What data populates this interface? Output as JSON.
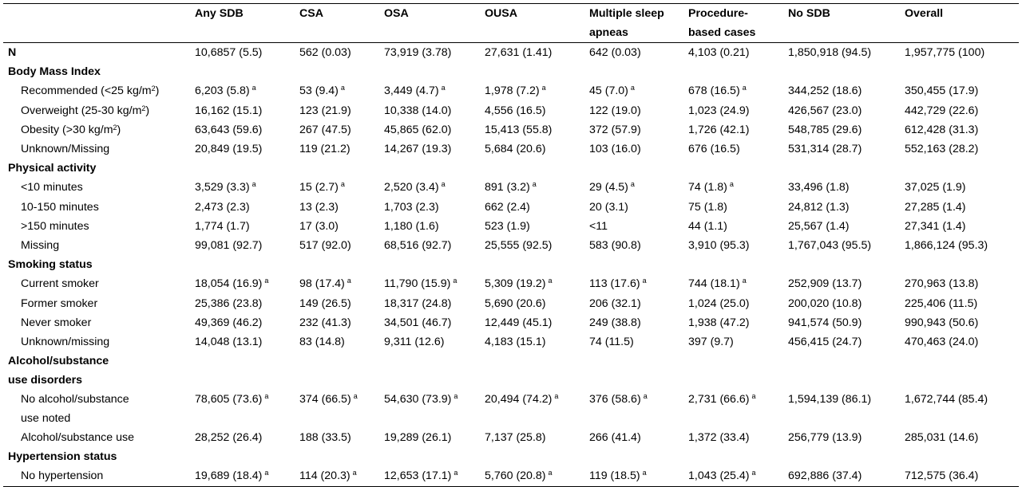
{
  "table": {
    "columns": [
      "",
      "Any SDB",
      "CSA",
      "OSA",
      "OUSA",
      "Multiple sleep apneas",
      "Procedure-based cases",
      "No SDB",
      "Overall"
    ],
    "header_lines": [
      [
        "",
        "Any SDB",
        "CSA",
        "OSA",
        "OUSA",
        "Multiple sleep",
        "Procedure-",
        "No SDB",
        "Overall"
      ],
      [
        "",
        "",
        "",
        "",
        "",
        "apneas",
        "based cases",
        "",
        ""
      ]
    ],
    "rows": [
      {
        "type": "bold",
        "label": "N",
        "cells": [
          "10,6857 (5.5)",
          "562 (0.03)",
          "73,919 (3.78)",
          "27,631 (1.41)",
          "642 (0.03)",
          "4,103 (0.21)",
          "1,850,918 (94.5)",
          "1,957,775 (100)"
        ]
      },
      {
        "type": "section",
        "label": "Body Mass Index"
      },
      {
        "type": "data",
        "label": "Recommended (<25 kg/m",
        "label_sup": "2",
        "label_after": ")",
        "cells": [
          "6,203 (5.8)",
          "53 (9.4)",
          "3,449 (4.7)",
          "1,978 (7.2)",
          "45 (7.0)",
          "678 (16.5)",
          "344,252 (18.6)",
          "350,455 (17.9)"
        ],
        "flags": [
          "a",
          "a",
          "a",
          "a",
          "a",
          "a",
          "",
          ""
        ]
      },
      {
        "type": "data",
        "label": "Overweight (25-30 kg/m",
        "label_sup": "2",
        "label_after": ")",
        "cells": [
          "16,162 (15.1)",
          "123 (21.9)",
          "10,338 (14.0)",
          "4,556 (16.5)",
          "122 (19.0)",
          "1,023 (24.9)",
          "426,567 (23.0)",
          "442,729 (22.6)"
        ]
      },
      {
        "type": "data",
        "label": "Obesity (>30 kg/m",
        "label_sup": "2",
        "label_after": ")",
        "cells": [
          "63,643 (59.6)",
          "267 (47.5)",
          "45,865 (62.0)",
          "15,413 (55.8)",
          "372 (57.9)",
          "1,726 (42.1)",
          "548,785 (29.6)",
          "612,428 (31.3)"
        ]
      },
      {
        "type": "data",
        "label": "Unknown/Missing",
        "cells": [
          "20,849 (19.5)",
          "119 (21.2)",
          "14,267 (19.3)",
          "5,684 (20.6)",
          "103 (16.0)",
          "676 (16.5)",
          "531,314 (28.7)",
          "552,163 (28.2)"
        ]
      },
      {
        "type": "section",
        "label": "Physical activity"
      },
      {
        "type": "data",
        "label": "<10 minutes",
        "cells": [
          "3,529 (3.3)",
          "15 (2.7)",
          "2,520 (3.4)",
          "891 (3.2)",
          "29 (4.5)",
          "74 (1.8)",
          "33,496 (1.8)",
          "37,025 (1.9)"
        ],
        "flags": [
          "a",
          "a",
          "a",
          "a",
          "a",
          "a",
          "",
          ""
        ]
      },
      {
        "type": "data",
        "label": "10-150 minutes",
        "cells": [
          "2,473 (2.3)",
          "13 (2.3)",
          "1,703 (2.3)",
          "662 (2.4)",
          "20 (3.1)",
          "75 (1.8)",
          "24,812 (1.3)",
          "27,285 (1.4)"
        ]
      },
      {
        "type": "data",
        "label": ">150 minutes",
        "cells": [
          "1,774 (1.7)",
          "17 (3.0)",
          "1,180 (1.6)",
          "523 (1.9)",
          "<11",
          "44 (1.1)",
          "25,567 (1.4)",
          "27,341 (1.4)"
        ]
      },
      {
        "type": "data",
        "label": "Missing",
        "cells": [
          "99,081 (92.7)",
          "517 (92.0)",
          "68,516 (92.7)",
          "25,555 (92.5)",
          "583 (90.8)",
          "3,910 (95.3)",
          "1,767,043 (95.5)",
          "1,866,124 (95.3)"
        ]
      },
      {
        "type": "section",
        "label": "Smoking status"
      },
      {
        "type": "data",
        "label": "Current smoker",
        "cells": [
          "18,054 (16.9)",
          "98 (17.4)",
          "11,790 (15.9)",
          "5,309 (19.2)",
          "113 (17.6)",
          "744 (18.1)",
          "252,909 (13.7)",
          "270,963 (13.8)"
        ],
        "flags": [
          "a",
          "a",
          "a",
          "a",
          "a",
          "a",
          "",
          ""
        ]
      },
      {
        "type": "data",
        "label": "Former smoker",
        "cells": [
          "25,386 (23.8)",
          "149 (26.5)",
          "18,317 (24.8)",
          "5,690 (20.6)",
          "206 (32.1)",
          "1,024 (25.0)",
          "200,020 (10.8)",
          "225,406 (11.5)"
        ]
      },
      {
        "type": "data",
        "label": "Never smoker",
        "cells": [
          "49,369 (46.2)",
          "232 (41.3)",
          "34,501 (46.7)",
          "12,449 (45.1)",
          "249 (38.8)",
          "1,938 (47.2)",
          "941,574 (50.9)",
          "990,943 (50.6)"
        ]
      },
      {
        "type": "data",
        "label": "Unknown/missing",
        "cells": [
          "14,048 (13.1)",
          "83 (14.8)",
          "9,311 (12.6)",
          "4,183 (15.1)",
          "74 (11.5)",
          "397 (9.7)",
          "456,415 (24.7)",
          "470,463 (24.0)"
        ]
      },
      {
        "type": "section2",
        "label": "Alcohol/substance",
        "label2": "use disorders"
      },
      {
        "type": "data2",
        "label": "No alcohol/substance",
        "label2": "use noted",
        "cells": [
          "78,605 (73.6)",
          "374 (66.5)",
          "54,630 (73.9)",
          "20,494 (74.2)",
          "376 (58.6)",
          "2,731 (66.6)",
          "1,594,139 (86.1)",
          "1,672,744 (85.4)"
        ],
        "flags": [
          "a",
          "a",
          "a",
          "a",
          "a",
          "a",
          "",
          ""
        ]
      },
      {
        "type": "data",
        "label": "Alcohol/substance use",
        "cells": [
          "28,252 (26.4)",
          "188 (33.5)",
          "19,289 (26.1)",
          "7,137 (25.8)",
          "266 (41.4)",
          "1,372 (33.4)",
          "256,779 (13.9)",
          "285,031 (14.6)"
        ]
      },
      {
        "type": "section",
        "label": "Hypertension status"
      },
      {
        "type": "data",
        "label": "No hypertension",
        "cells": [
          "19,689 (18.4)",
          "114 (20.3)",
          "12,653 (17.1)",
          "5,760 (20.8)",
          "119 (18.5)",
          "1,043 (25.4)",
          "692,886 (37.4)",
          "712,575 (36.4)"
        ],
        "flags": [
          "a",
          "a",
          "a",
          "a",
          "a",
          "a",
          "",
          ""
        ]
      }
    ]
  }
}
